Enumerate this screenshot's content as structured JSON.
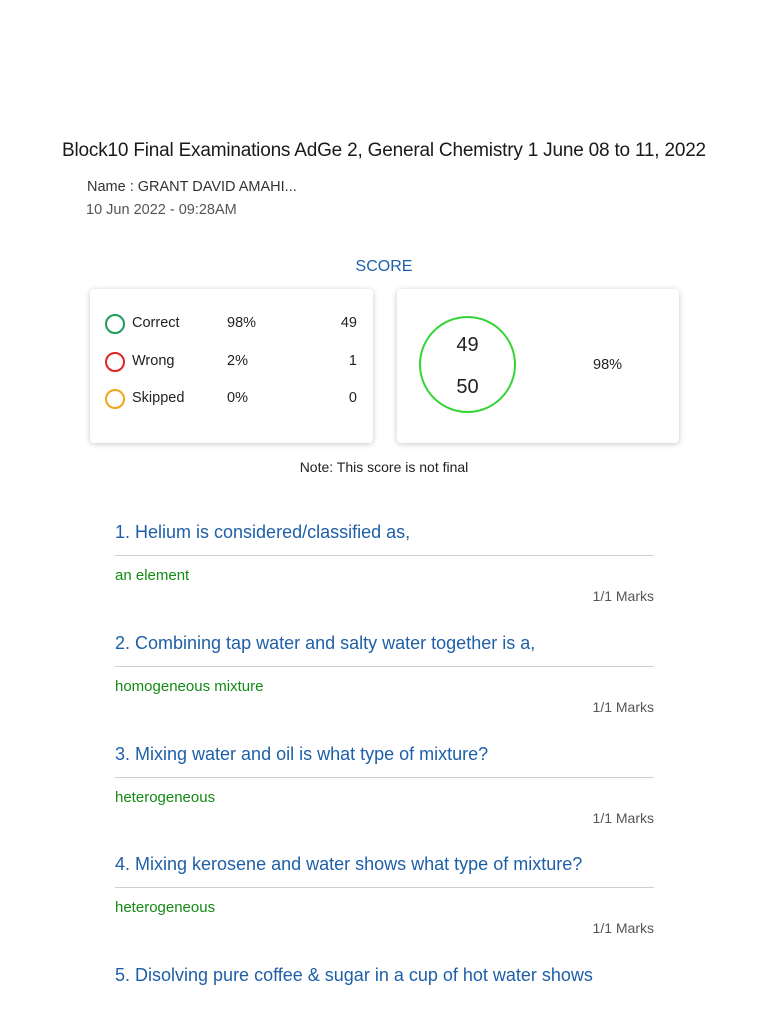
{
  "header": {
    "title": "Block10 Final Examinations AdGe 2, General Chemistry 1 June 08 to 11, 2022",
    "name": "Name : GRANT DAVID AMAHI...",
    "date": "10 Jun 2022 - 09:28AM"
  },
  "score": {
    "label": "SCORE",
    "stats": [
      {
        "label": "Correct",
        "percent": "98%",
        "count": "49",
        "color": "#1e9e5a"
      },
      {
        "label": "Wrong",
        "percent": "2%",
        "count": "1",
        "color": "#e02424"
      },
      {
        "label": "Skipped",
        "percent": "0%",
        "count": "0",
        "color": "#f2a516"
      }
    ],
    "obtained": "49",
    "total": "50",
    "percent": "98%",
    "ring_color": "#35d435",
    "note": "Note: This score is not final"
  },
  "questions": [
    {
      "text": "1. Helium is considered/classified as,",
      "answer": "an element",
      "marks": "1/1 Marks"
    },
    {
      "text": "2. Combining tap water and salty water together is a,",
      "answer": "homogeneous mixture",
      "marks": "1/1 Marks"
    },
    {
      "text": "3. Mixing water and oil is what type of mixture?",
      "answer": "heterogeneous",
      "marks": "1/1 Marks"
    },
    {
      "text": "4. Mixing kerosene and water shows what type of mixture?",
      "answer": "heterogeneous",
      "marks": "1/1 Marks"
    },
    {
      "text": "5. Disolving pure coffee & sugar in a cup of hot water shows"
    }
  ]
}
